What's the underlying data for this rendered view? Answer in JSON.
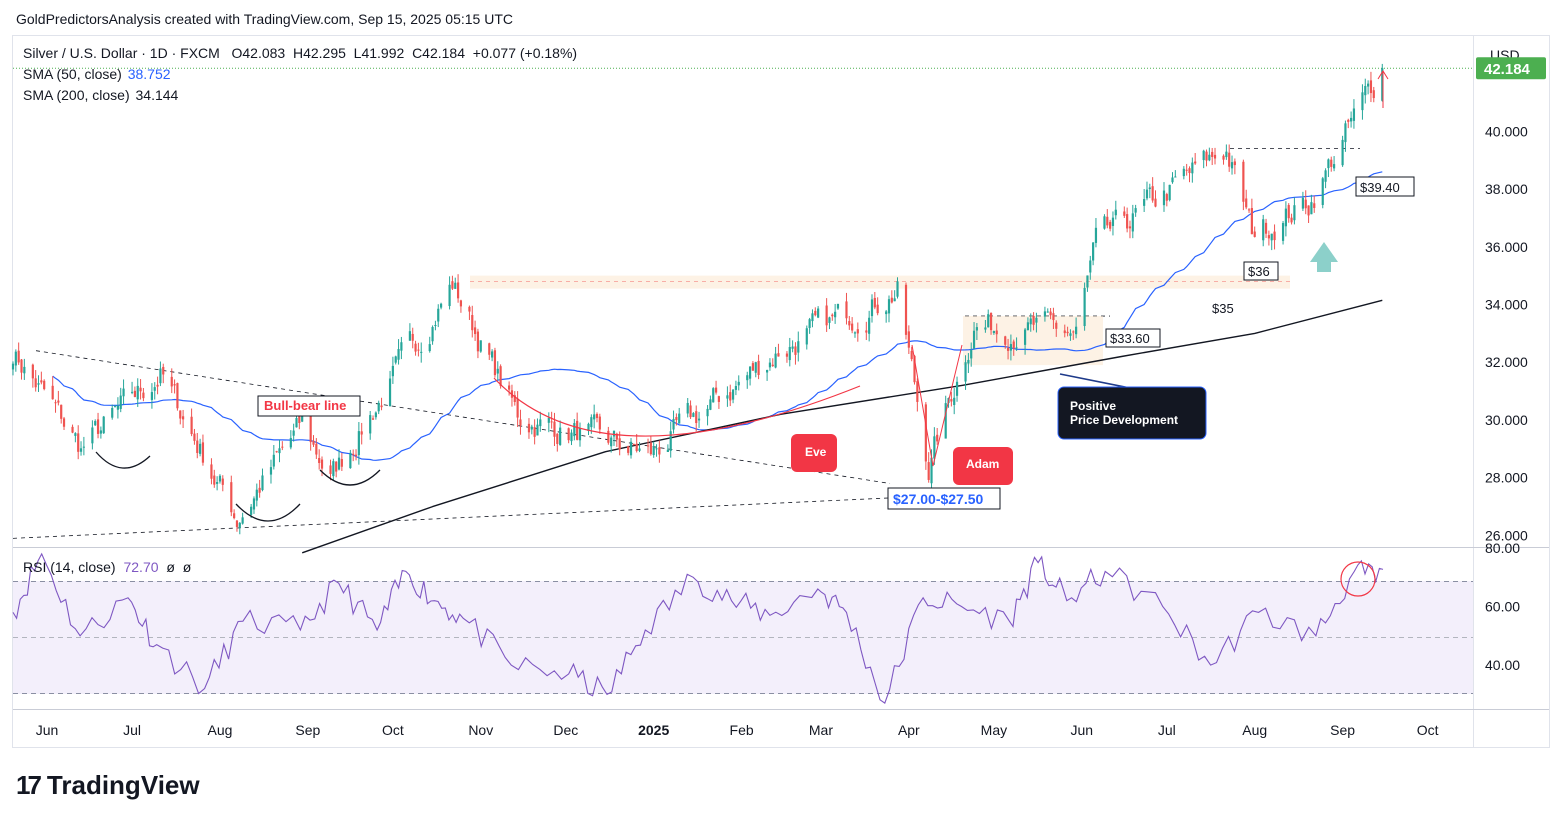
{
  "header": {
    "attribution": "GoldPredictorsAnalysis created with TradingView.com, Sep 15, 2025 05:15 UTC"
  },
  "legend": {
    "symbol": "Silver / U.S. Dollar · 1D · FXCM",
    "ohlc": "O42.083  H42.295  L41.992  C42.184  +0.077 (+0.18%)",
    "sma50_label": "SMA (50, close)",
    "sma50_value": "38.752",
    "sma200_label": "SMA (200, close)",
    "sma200_value": "34.144"
  },
  "rsi_legend": {
    "label": "RSI (14, close)",
    "value": "72.70",
    "extra": "ø  ø"
  },
  "currency": "USD",
  "last_price": "42.184",
  "brand": "TradingView",
  "colors": {
    "up": "#26a69a",
    "down": "#ef5350",
    "sma50": "#2962ff",
    "sma200": "#131722",
    "rsi": "#7e57c2",
    "annotation_red": "#f23645",
    "price_tag": "#4caf50"
  },
  "annotations": {
    "bull_bear": "Bull-bear line",
    "eve": "Eve",
    "adam": "Adam",
    "support_zone": "$27.00-$27.50",
    "positive": [
      "Positive",
      "Price Development"
    ],
    "l35": "$35",
    "l3360": "$33.60",
    "l36": "$36",
    "l3940": "$39.40"
  },
  "chart_data": [
    {
      "type": "candlestick",
      "title": "Silver / U.S. Dollar · 1D · FXCM",
      "x_tick_labels": [
        "Jun",
        "Jul",
        "Aug",
        "Sep",
        "Oct",
        "Nov",
        "Dec",
        "2025",
        "Feb",
        "Mar",
        "Apr",
        "May",
        "Jun",
        "Jul",
        "Aug",
        "Sep",
        "Oct"
      ],
      "y_tick_labels": [
        "26.000",
        "28.000",
        "30.000",
        "32.000",
        "34.000",
        "36.000",
        "38.000",
        "40.000"
      ],
      "ylim": [
        25.6,
        43.3
      ],
      "key_points": [
        {
          "date": "2024-05-20",
          "price": 32.4
        },
        {
          "date": "2024-06-13",
          "price": 29.0
        },
        {
          "date": "2024-07-11",
          "price": 31.6
        },
        {
          "date": "2024-08-07",
          "price": 26.6
        },
        {
          "date": "2024-08-30",
          "price": 29.8
        },
        {
          "date": "2024-09-09",
          "price": 28.0
        },
        {
          "date": "2024-10-22",
          "price": 34.7
        },
        {
          "date": "2024-11-14",
          "price": 30.1
        },
        {
          "date": "2024-12-31",
          "price": 28.8
        },
        {
          "date": "2025-02-14",
          "price": 32.4
        },
        {
          "date": "2025-03-28",
          "price": 34.5
        },
        {
          "date": "2025-04-08",
          "price": 28.4
        },
        {
          "date": "2025-04-24",
          "price": 33.3
        },
        {
          "date": "2025-05-30",
          "price": 33.0
        },
        {
          "date": "2025-06-06",
          "price": 36.0
        },
        {
          "date": "2025-07-22",
          "price": 39.4
        },
        {
          "date": "2025-07-31",
          "price": 36.5
        },
        {
          "date": "2025-08-20",
          "price": 37.5
        },
        {
          "date": "2025-09-15",
          "price": 42.184
        }
      ],
      "series": [
        {
          "name": "SMA (50, close)",
          "last": 38.752
        },
        {
          "name": "SMA (200, close)",
          "last": 34.144
        }
      ],
      "horizontal_levels": [
        34.8,
        33.6,
        39.4
      ],
      "last_price": 42.184
    },
    {
      "type": "line",
      "title": "RSI (14, close)",
      "y_tick_labels": [
        "40.00",
        "60.00",
        "80.00"
      ],
      "ylim": [
        25,
        80
      ],
      "bands": [
        30,
        50,
        70
      ],
      "last": 72.7
    }
  ]
}
